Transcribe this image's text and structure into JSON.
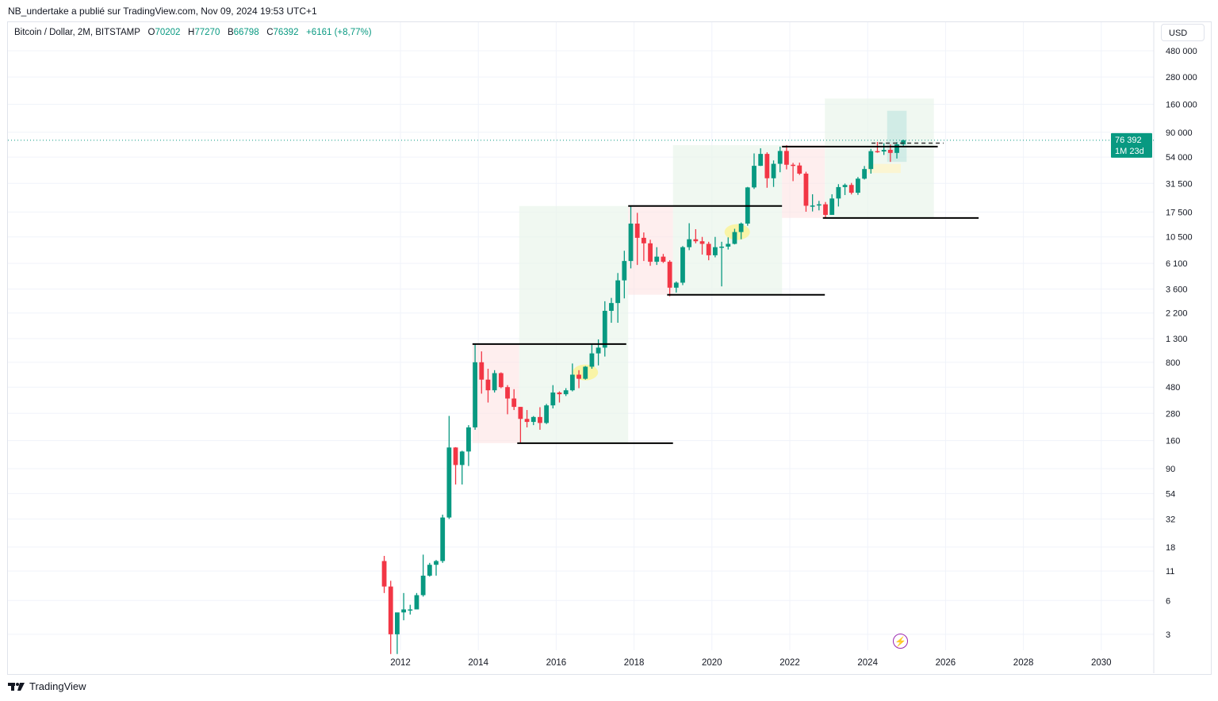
{
  "published": "NB_undertake a publié sur TradingView.com, Nov 09, 2024 19:53 UTC+1",
  "legend": {
    "symbol": "Bitcoin / Dollar, 2M, BITSTAMP",
    "o_label": "O",
    "o": "70202",
    "h_label": "H",
    "h": "77270",
    "b_label": "B",
    "b": "66798",
    "c_label": "C",
    "c": "76392",
    "change": "+6161 (+8,77%)"
  },
  "currency": "USD",
  "brand": "TradingView",
  "last_price": {
    "value": "76 392",
    "countdown": "1M 23d"
  },
  "colors": {
    "up": "#089981",
    "down": "#f23645",
    "zone_up": "#e8f5e9",
    "zone_down": "#fdecec"
  },
  "chart_data": {
    "type": "candlestick",
    "scale": "log",
    "interval": "2M",
    "x_ticks": [
      "2012",
      "2014",
      "2016",
      "2018",
      "2020",
      "2022",
      "2024",
      "2026",
      "2028",
      "2030"
    ],
    "y_ticks": [
      {
        "v": 480000,
        "t": "480 000"
      },
      {
        "v": 280000,
        "t": "280 000"
      },
      {
        "v": 160000,
        "t": "160 000"
      },
      {
        "v": 90000,
        "t": "90 000"
      },
      {
        "v": 54000,
        "t": "54 000"
      },
      {
        "v": 31500,
        "t": "31 500"
      },
      {
        "v": 17500,
        "t": "17 500"
      },
      {
        "v": 10500,
        "t": "10 500"
      },
      {
        "v": 6100,
        "t": "6 100"
      },
      {
        "v": 3600,
        "t": "3 600"
      },
      {
        "v": 2200,
        "t": "2 200"
      },
      {
        "v": 1300,
        "t": "1 300"
      },
      {
        "v": 800,
        "t": "800"
      },
      {
        "v": 480,
        "t": "480"
      },
      {
        "v": 280,
        "t": "280"
      },
      {
        "v": 160,
        "t": "160"
      },
      {
        "v": 90,
        "t": "90"
      },
      {
        "v": 54,
        "t": "54"
      },
      {
        "v": 32,
        "t": "32"
      },
      {
        "v": 18,
        "t": "18"
      },
      {
        "v": 11,
        "t": "11"
      },
      {
        "v": 6,
        "t": "6"
      },
      {
        "v": 3,
        "t": "3"
      }
    ],
    "start": 2011.5,
    "ohlc": [
      [
        13.5,
        15,
        7,
        8
      ],
      [
        8,
        9,
        2,
        3
      ],
      [
        3,
        4.5,
        2,
        4.7
      ],
      [
        4.7,
        7,
        4,
        5
      ],
      [
        5,
        5.5,
        4.5,
        5
      ],
      [
        5,
        7,
        5,
        6.7
      ],
      [
        6.7,
        15.4,
        6.5,
        10
      ],
      [
        10,
        13,
        9.8,
        12.5
      ],
      [
        12.5,
        13.8,
        10,
        13.5
      ],
      [
        13.5,
        35,
        13,
        33
      ],
      [
        33,
        266,
        32,
        139
      ],
      [
        139,
        140,
        65,
        97
      ],
      [
        97,
        130,
        65,
        128
      ],
      [
        128,
        220,
        95,
        210
      ],
      [
        210,
        1163,
        200,
        800
      ],
      [
        800,
        1000,
        420,
        560
      ],
      [
        560,
        700,
        350,
        450
      ],
      [
        450,
        680,
        430,
        640
      ],
      [
        640,
        650,
        470,
        480
      ],
      [
        480,
        500,
        275,
        380
      ],
      [
        380,
        460,
        300,
        320
      ],
      [
        320,
        320,
        152,
        250
      ],
      [
        250,
        300,
        210,
        235
      ],
      [
        235,
        265,
        220,
        260
      ],
      [
        260,
        318,
        200,
        230
      ],
      [
        230,
        340,
        225,
        330
      ],
      [
        330,
        500,
        310,
        430
      ],
      [
        430,
        440,
        350,
        415
      ],
      [
        415,
        470,
        400,
        450
      ],
      [
        450,
        780,
        440,
        620
      ],
      [
        620,
        680,
        470,
        570
      ],
      [
        570,
        740,
        560,
        730
      ],
      [
        730,
        1150,
        700,
        960
      ],
      [
        960,
        1280,
        750,
        1080
      ],
      [
        1080,
        2800,
        900,
        2300
      ],
      [
        2300,
        3000,
        1800,
        2700
      ],
      [
        2700,
        5000,
        1800,
        4300
      ],
      [
        4300,
        7900,
        2970,
        6400
      ],
      [
        6400,
        19800,
        5500,
        13800
      ],
      [
        13800,
        17200,
        5900,
        10300
      ],
      [
        10300,
        11500,
        6400,
        9200
      ],
      [
        9200,
        9900,
        5800,
        6300
      ],
      [
        6300,
        8500,
        5900,
        7000
      ],
      [
        7000,
        7400,
        6150,
        6300
      ],
      [
        6300,
        6500,
        3100,
        3700
      ],
      [
        3700,
        4200,
        3350,
        4100
      ],
      [
        4100,
        8700,
        3900,
        8500
      ],
      [
        8500,
        13900,
        8000,
        10000
      ],
      [
        10000,
        12300,
        9200,
        9600
      ],
      [
        9600,
        10500,
        7300,
        9100
      ],
      [
        9100,
        9500,
        6500,
        7200
      ],
      [
        7200,
        10500,
        6900,
        8500
      ],
      [
        8500,
        9500,
        3800,
        8600
      ],
      [
        8600,
        10400,
        8100,
        9100
      ],
      [
        9100,
        12400,
        9000,
        11600
      ],
      [
        11600,
        14100,
        10000,
        13800
      ],
      [
        13800,
        29300,
        13200,
        29000
      ],
      [
        29000,
        58300,
        28100,
        45200
      ],
      [
        45200,
        64800,
        45000,
        57700
      ],
      [
        57700,
        59600,
        28800,
        35000
      ],
      [
        35000,
        50500,
        29300,
        47100
      ],
      [
        47100,
        67000,
        39600,
        61300
      ],
      [
        61300,
        69000,
        42000,
        46200
      ],
      [
        46200,
        48000,
        33000,
        45500
      ],
      [
        45500,
        48200,
        37500,
        38500
      ],
      [
        38500,
        40000,
        17600,
        19900
      ],
      [
        19900,
        25200,
        17700,
        20000
      ],
      [
        20000,
        22000,
        18100,
        20500
      ],
      [
        20500,
        21500,
        15500,
        16500
      ],
      [
        16500,
        25200,
        16500,
        23100
      ],
      [
        23100,
        31000,
        19600,
        29200
      ],
      [
        29200,
        31400,
        24800,
        30500
      ],
      [
        30500,
        31800,
        25100,
        26000
      ],
      [
        26000,
        35900,
        24900,
        34700
      ],
      [
        34700,
        45000,
        34100,
        42300
      ],
      [
        42300,
        64000,
        38500,
        61100
      ],
      [
        61100,
        73800,
        59100,
        60600
      ],
      [
        60600,
        72000,
        56500,
        62700
      ],
      [
        62700,
        70000,
        49000,
        58900
      ],
      [
        58900,
        73600,
        52500,
        70200
      ],
      [
        70200,
        77270,
        66798,
        76392
      ]
    ],
    "zones": [
      {
        "kind": "down",
        "x": [
          2013.85,
          2015.05
        ],
        "y": [
          152,
          1163
        ]
      },
      {
        "kind": "up",
        "x": [
          2015.05,
          2017.85
        ],
        "y": [
          152,
          19800
        ]
      },
      {
        "kind": "down",
        "x": [
          2017.85,
          2019.0
        ],
        "y": [
          3200,
          19800
        ]
      },
      {
        "kind": "up",
        "x": [
          2019.0,
          2021.8
        ],
        "y": [
          3200,
          69000
        ]
      },
      {
        "kind": "down",
        "x": [
          2021.8,
          2022.9
        ],
        "y": [
          15500,
          69000
        ]
      },
      {
        "kind": "up",
        "x": [
          2022.9,
          2025.7
        ],
        "y": [
          15500,
          180000
        ]
      },
      {
        "kind": "teal",
        "x": [
          2024.5,
          2025.0
        ],
        "y": [
          49000,
          140000
        ]
      },
      {
        "kind": "yellow",
        "x": [
          2024.0,
          2024.85
        ],
        "y": [
          39000,
          47000
        ]
      }
    ],
    "levels": [
      {
        "x": [
          2013.85,
          2017.8
        ],
        "y": 1163
      },
      {
        "x": [
          2015.0,
          2019.0
        ],
        "y": 152
      },
      {
        "x": [
          2017.85,
          2021.8
        ],
        "y": 19800
      },
      {
        "x": [
          2018.85,
          2022.9
        ],
        "y": 3200
      },
      {
        "x": [
          2021.8,
          2025.8
        ],
        "y": 67000
      },
      {
        "x": [
          2022.85,
          2026.85
        ],
        "y": 15500
      }
    ],
    "highlights": [
      {
        "x": 2016.75,
        "y": 650
      },
      {
        "x": 2020.65,
        "y": 11600
      }
    ],
    "last": 76392
  }
}
